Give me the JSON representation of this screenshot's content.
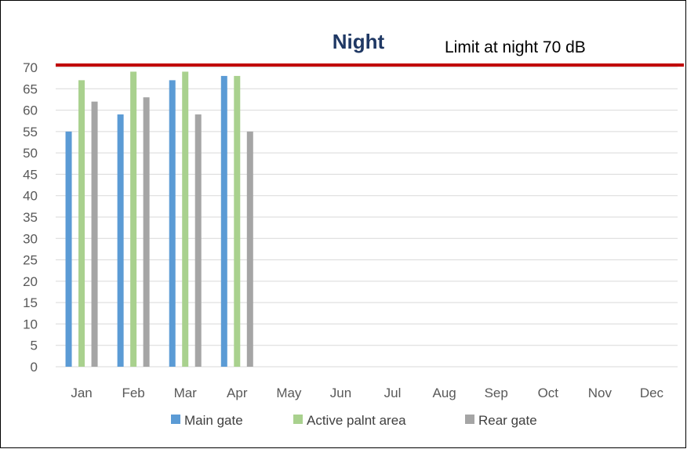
{
  "chart_data": {
    "type": "bar",
    "title": "Night",
    "categories": [
      "Jan",
      "Feb",
      "Mar",
      "Apr",
      "May",
      "Jun",
      "Jul",
      "Aug",
      "Sep",
      "Oct",
      "Nov",
      "Dec"
    ],
    "series": [
      {
        "name": "Main gate",
        "color": "#5b9bd5",
        "values": [
          55,
          59,
          67,
          68,
          null,
          null,
          null,
          null,
          null,
          null,
          null,
          null
        ]
      },
      {
        "name": "Active palnt area",
        "color": "#a9d18e",
        "values": [
          67,
          69,
          69,
          68,
          null,
          null,
          null,
          null,
          null,
          null,
          null,
          null
        ]
      },
      {
        "name": "Rear gate",
        "color": "#a5a5a5",
        "values": [
          62,
          63,
          59,
          55,
          null,
          null,
          null,
          null,
          null,
          null,
          null,
          null
        ]
      }
    ],
    "ylim": [
      0,
      70
    ],
    "yticks": [
      0,
      5,
      10,
      15,
      20,
      25,
      30,
      35,
      40,
      45,
      50,
      55,
      60,
      65,
      70
    ],
    "xlabel": "",
    "ylabel": "",
    "grid": "horizontal",
    "legend": "bottom",
    "reference_line": {
      "value": 70,
      "label": "Limit at night 70 dB",
      "color": "#c00000"
    },
    "gridline_color": "#d9d9d9",
    "title_color": "#1f3864"
  }
}
